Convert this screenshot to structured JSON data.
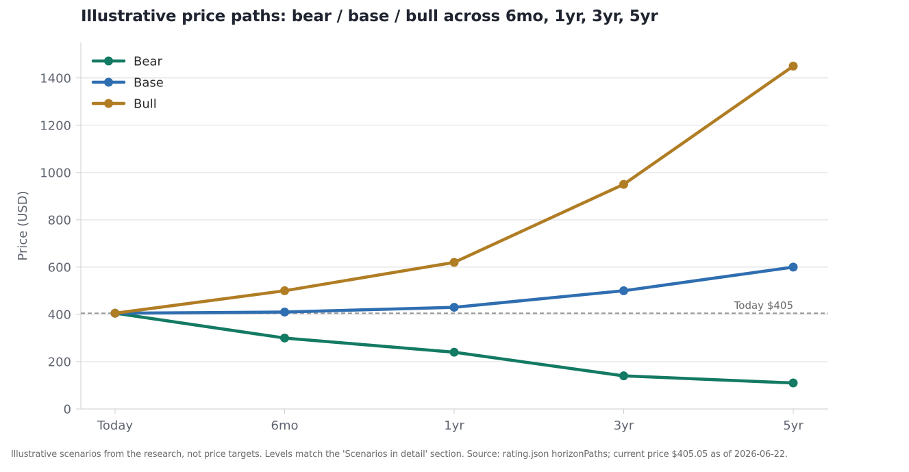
{
  "chart_data": {
    "type": "line",
    "title": "Illustrative price paths: bear / base / bull across 6mo, 1yr, 3yr, 5yr",
    "xlabel": "",
    "ylabel": "Price (USD)",
    "categories": [
      "Today",
      "6mo",
      "1yr",
      "3yr",
      "5yr"
    ],
    "ylim": [
      0,
      1550
    ],
    "yticks": [
      0,
      200,
      400,
      600,
      800,
      1000,
      1200,
      1400
    ],
    "grid": true,
    "legend_position": "top-left",
    "series": [
      {
        "name": "Bear",
        "color": "#137a63",
        "values": [
          405,
          300,
          240,
          140,
          110
        ]
      },
      {
        "name": "Base",
        "color": "#2f6eb0",
        "values": [
          405,
          410,
          430,
          500,
          600
        ]
      },
      {
        "name": "Bull",
        "color": "#b07d24",
        "values": [
          405,
          500,
          620,
          950,
          1450
        ]
      }
    ],
    "reference_line": {
      "value": 405.05,
      "label": "Today $405",
      "color": "#999999"
    }
  },
  "caption": "Illustrative scenarios from the research, not price targets. Levels match the 'Scenarios in detail' section. Source: rating.json horizonPaths; current price $405.05 as of 2026-06-22."
}
